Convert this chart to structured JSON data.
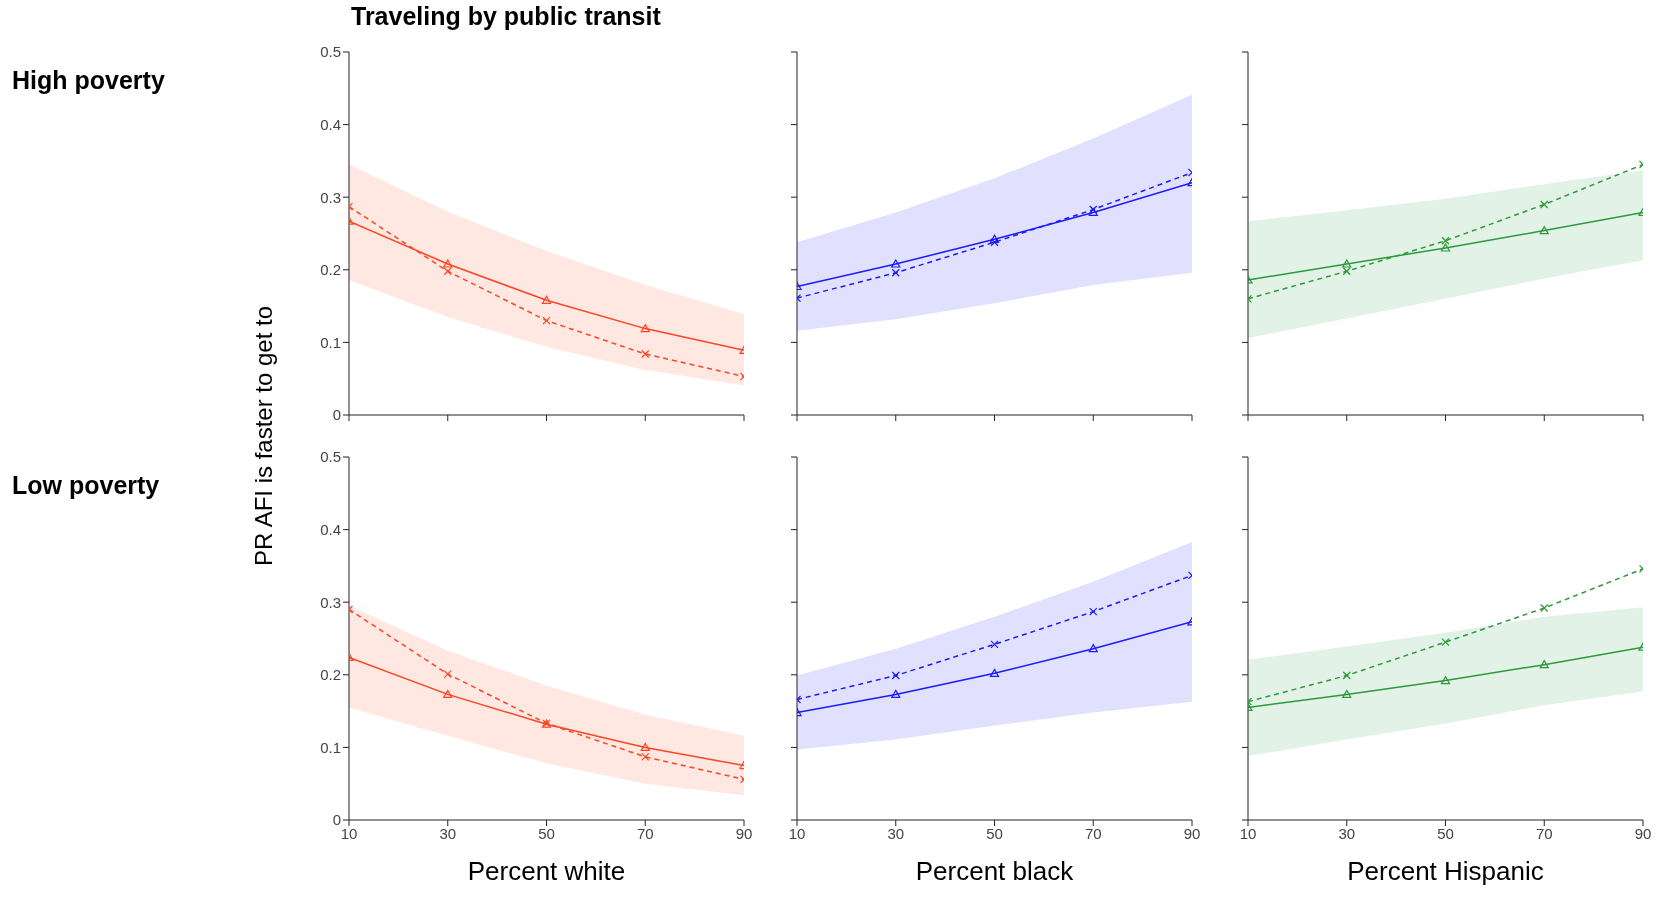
{
  "chart_data": [
    {
      "type": "line",
      "title": "Traveling by public transit",
      "ylabel": "PR AFI is faster to get to",
      "annotations": [
        "High poverty"
      ],
      "x": [
        10,
        30,
        50,
        70,
        90
      ],
      "xlim": [
        10,
        90
      ],
      "xticks": [
        10,
        30,
        50,
        70,
        90
      ],
      "ylim": [
        0,
        0.5
      ],
      "yticks": [
        0,
        0.1,
        0.2,
        0.3,
        0.4,
        0.5
      ],
      "tick_labels": "y",
      "series": [
        {
          "color": "#ff4422",
          "values": [
            0.267,
            0.208,
            0.158,
            0.119,
            0.089
          ],
          "lower": [
            0.186,
            0.135,
            0.094,
            0.062,
            0.041
          ],
          "upper": [
            0.345,
            0.28,
            0.226,
            0.179,
            0.139
          ],
          "marker": "triangle",
          "line_style": "solid"
        },
        {
          "color": "#ff4422",
          "values": [
            0.287,
            0.198,
            0.13,
            0.084,
            0.053
          ],
          "marker": "cross",
          "line_style": "dashed"
        }
      ]
    },
    {
      "type": "line",
      "x": [
        10,
        30,
        50,
        70,
        90
      ],
      "xlim": [
        10,
        90
      ],
      "xticks": [
        10,
        30,
        50,
        70,
        90
      ],
      "ylim": [
        0,
        0.5
      ],
      "yticks": [
        0,
        0.1,
        0.2,
        0.3,
        0.4,
        0.5
      ],
      "tick_labels": false,
      "series": [
        {
          "color": "#1a1aff",
          "values": [
            0.177,
            0.208,
            0.242,
            0.279,
            0.32
          ],
          "lower": [
            0.116,
            0.132,
            0.154,
            0.179,
            0.196
          ],
          "upper": [
            0.238,
            0.279,
            0.326,
            0.381,
            0.441
          ],
          "marker": "triangle",
          "line_style": "solid"
        },
        {
          "color": "#1a1aff",
          "values": [
            0.161,
            0.196,
            0.238,
            0.283,
            0.334
          ],
          "marker": "cross",
          "line_style": "dashed"
        }
      ]
    },
    {
      "type": "line",
      "x": [
        10,
        30,
        50,
        70,
        90
      ],
      "xlim": [
        10,
        90
      ],
      "xticks": [
        10,
        30,
        50,
        70,
        90
      ],
      "ylim": [
        0,
        0.5
      ],
      "yticks": [
        0,
        0.1,
        0.2,
        0.3,
        0.4,
        0.5
      ],
      "tick_labels": false,
      "series": [
        {
          "color": "#2a9a3a",
          "values": [
            0.186,
            0.208,
            0.23,
            0.254,
            0.279
          ],
          "lower": [
            0.106,
            0.133,
            0.16,
            0.188,
            0.213
          ],
          "upper": [
            0.267,
            0.282,
            0.298,
            0.318,
            0.337
          ],
          "marker": "triangle",
          "line_style": "solid"
        },
        {
          "color": "#2a9a3a",
          "values": [
            0.16,
            0.198,
            0.24,
            0.29,
            0.345
          ],
          "marker": "cross",
          "line_style": "dashed"
        }
      ]
    },
    {
      "type": "line",
      "xlabel": "Percent white",
      "annotations": [
        "Low poverty"
      ],
      "x": [
        10,
        30,
        50,
        70,
        90
      ],
      "xlim": [
        10,
        90
      ],
      "xticks": [
        10,
        30,
        50,
        70,
        90
      ],
      "ylim": [
        0,
        0.5
      ],
      "yticks": [
        0,
        0.1,
        0.2,
        0.3,
        0.4,
        0.5
      ],
      "series": [
        {
          "color": "#ff4422",
          "values": [
            0.224,
            0.173,
            0.132,
            0.1,
            0.075
          ],
          "lower": [
            0.155,
            0.116,
            0.078,
            0.05,
            0.034
          ],
          "upper": [
            0.295,
            0.233,
            0.185,
            0.145,
            0.116
          ],
          "marker": "triangle",
          "line_style": "solid"
        },
        {
          "color": "#ff4422",
          "values": [
            0.29,
            0.201,
            0.133,
            0.087,
            0.056
          ],
          "marker": "cross",
          "line_style": "dashed"
        }
      ]
    },
    {
      "type": "line",
      "xlabel": "Percent black",
      "x": [
        10,
        30,
        50,
        70,
        90
      ],
      "xlim": [
        10,
        90
      ],
      "xticks": [
        10,
        30,
        50,
        70,
        90
      ],
      "ylim": [
        0,
        0.5
      ],
      "yticks": [
        0,
        0.1,
        0.2,
        0.3,
        0.4,
        0.5
      ],
      "tick_labels": "x",
      "series": [
        {
          "color": "#1a1aff",
          "values": [
            0.148,
            0.173,
            0.202,
            0.236,
            0.273
          ],
          "lower": [
            0.097,
            0.111,
            0.13,
            0.148,
            0.163
          ],
          "upper": [
            0.199,
            0.236,
            0.28,
            0.328,
            0.383
          ],
          "marker": "triangle",
          "line_style": "solid"
        },
        {
          "color": "#1a1aff",
          "values": [
            0.166,
            0.199,
            0.242,
            0.287,
            0.337
          ],
          "marker": "cross",
          "line_style": "dashed"
        }
      ]
    },
    {
      "type": "line",
      "xlabel": "Percent Hispanic",
      "x": [
        10,
        30,
        50,
        70,
        90
      ],
      "xlim": [
        10,
        90
      ],
      "xticks": [
        10,
        30,
        50,
        70,
        90
      ],
      "ylim": [
        0,
        0.5
      ],
      "yticks": [
        0,
        0.1,
        0.2,
        0.3,
        0.4,
        0.5
      ],
      "tick_labels": "x",
      "series": [
        {
          "color": "#2a9a3a",
          "values": [
            0.155,
            0.173,
            0.192,
            0.214,
            0.238
          ],
          "lower": [
            0.088,
            0.111,
            0.133,
            0.158,
            0.177
          ],
          "upper": [
            0.221,
            0.239,
            0.258,
            0.28,
            0.293
          ],
          "marker": "triangle",
          "line_style": "solid"
        },
        {
          "color": "#2a9a3a",
          "values": [
            0.163,
            0.199,
            0.245,
            0.292,
            0.346
          ],
          "marker": "cross",
          "line_style": "dashed"
        }
      ]
    }
  ]
}
